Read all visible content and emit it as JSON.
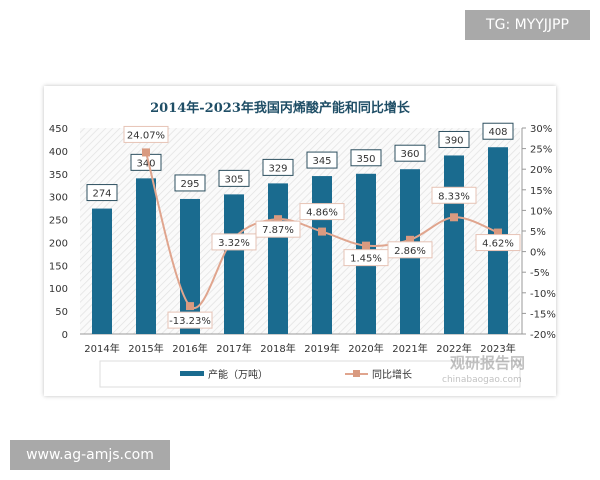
{
  "watermarks": {
    "top_right": "TG: MYYJJPP",
    "bottom_left": "www.ag-amjs.com",
    "logo_text": "观研报告网",
    "logo_url": "chinabaogao.com"
  },
  "chart_data": {
    "type": "bar+line",
    "title": "2014年-2023年我国丙烯酸产能和同比增长",
    "categories": [
      "2014年",
      "2015年",
      "2016年",
      "2017年",
      "2018年",
      "2019年",
      "2020年",
      "2021年",
      "2022年",
      "2023年"
    ],
    "series": [
      {
        "name": "产能（万吨）",
        "type": "bar",
        "axis": "left",
        "color": "#1a6b8f",
        "values": [
          274,
          340,
          295,
          305,
          329,
          345,
          350,
          360,
          390,
          408
        ],
        "labels": [
          "274",
          "340",
          "295",
          "305",
          "329",
          "345",
          "350",
          "360",
          "390",
          "408"
        ]
      },
      {
        "name": "同比增长",
        "type": "line",
        "axis": "right",
        "color": "#e0a58e",
        "values": [
          null,
          24.07,
          -13.23,
          3.32,
          7.87,
          4.86,
          1.45,
          2.86,
          8.33,
          4.62
        ],
        "labels": [
          "",
          "24.07%",
          "-13.23%",
          "3.32%",
          "7.87%",
          "4.86%",
          "1.45%",
          "2.86%",
          "8.33%",
          "4.62%"
        ]
      }
    ],
    "ylim_left": [
      0,
      450
    ],
    "yticks_left": [
      "0",
      "50",
      "100",
      "150",
      "200",
      "250",
      "300",
      "350",
      "400",
      "450"
    ],
    "ylim_right": [
      -20,
      30
    ],
    "yticks_right": [
      "-20%",
      "-15%",
      "-10%",
      "-5%",
      "0%",
      "5%",
      "10%",
      "15%",
      "20%",
      "25%",
      "30%"
    ],
    "legend": "bottom",
    "grid": false
  }
}
